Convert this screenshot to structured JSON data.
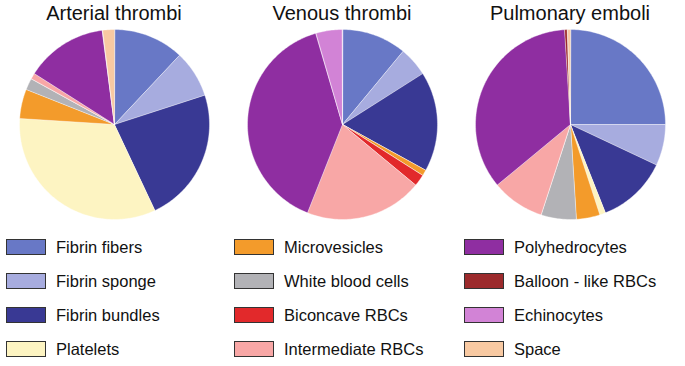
{
  "chart_data": [
    {
      "type": "pie",
      "title": "Arterial thrombi",
      "categories": [
        "Fibrin fibers",
        "Fibrin sponge",
        "Fibrin bundles",
        "Platelets",
        "Microvesicles",
        "White blood cells",
        "Biconcave RBCs",
        "Intermediate RBCs",
        "Polyhedrocytes",
        "Balloon - like RBCs",
        "Echinocytes",
        "Space"
      ],
      "values": [
        12,
        8,
        23,
        33,
        5,
        2,
        0,
        1,
        14,
        0,
        0,
        2
      ],
      "colors": [
        "#6878c6",
        "#a7acdf",
        "#393994",
        "#fdf4c2",
        "#f39b2b",
        "#b2b2b6",
        "#e2292b",
        "#f8a7a6",
        "#8f2ea1",
        "#9c2a2c",
        "#d283d6",
        "#f8c9a2"
      ],
      "legend": "bottom"
    },
    {
      "type": "pie",
      "title": "Venous thrombi",
      "categories": [
        "Fibrin fibers",
        "Fibrin sponge",
        "Fibrin bundles",
        "Platelets",
        "Microvesicles",
        "White blood cells",
        "Biconcave RBCs",
        "Intermediate RBCs",
        "Polyhedrocytes",
        "Balloon - like RBCs",
        "Echinocytes",
        "Space"
      ],
      "values": [
        11,
        5,
        17,
        0,
        1,
        0,
        2,
        20,
        39.5,
        0,
        4.5,
        0
      ],
      "colors": [
        "#6878c6",
        "#a7acdf",
        "#393994",
        "#fdf4c2",
        "#f39b2b",
        "#b2b2b6",
        "#e2292b",
        "#f8a7a6",
        "#8f2ea1",
        "#9c2a2c",
        "#d283d6",
        "#f8c9a2"
      ],
      "legend": "bottom"
    },
    {
      "type": "pie",
      "title": "Pulmonary emboli",
      "categories": [
        "Fibrin fibers",
        "Fibrin sponge",
        "Fibrin bundles",
        "Platelets",
        "Microvesicles",
        "White blood cells",
        "Biconcave RBCs",
        "Intermediate RBCs",
        "Polyhedrocytes",
        "Balloon - like RBCs",
        "Echinocytes",
        "Space"
      ],
      "values": [
        25,
        7,
        12,
        1,
        4,
        6,
        0,
        9,
        35,
        0.5,
        0,
        0.5
      ],
      "colors": [
        "#6878c6",
        "#a7acdf",
        "#393994",
        "#fdf4c2",
        "#f39b2b",
        "#b2b2b6",
        "#e2292b",
        "#f8a7a6",
        "#8f2ea1",
        "#9c2a2c",
        "#d283d6",
        "#f8c9a2"
      ],
      "legend": "bottom"
    }
  ]
}
